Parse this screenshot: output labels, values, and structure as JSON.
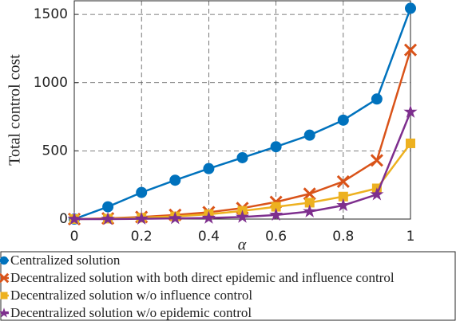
{
  "chart_data": {
    "type": "line",
    "x_label": "α",
    "y_label": "Total control cost",
    "x": [
      0,
      0.1,
      0.2,
      0.3,
      0.4,
      0.5,
      0.6,
      0.7,
      0.8,
      0.9,
      1
    ],
    "xlim": [
      0,
      1
    ],
    "xticks": [
      0,
      0.2,
      0.4,
      0.6,
      0.8,
      1
    ],
    "ylim": [
      0,
      1600
    ],
    "yticks": [
      0,
      500,
      1000,
      1500
    ],
    "grid": true,
    "legend": "bottom",
    "series": [
      {
        "name": "Centralized solution",
        "color": "#0072BD",
        "marker": "circle",
        "values": [
          0,
          90,
          195,
          285,
          370,
          450,
          530,
          615,
          725,
          880,
          1545
        ]
      },
      {
        "name": "Decentralized solution with both direct epidemic and influence control",
        "color": "#D95319",
        "marker": "x",
        "values": [
          0,
          5,
          15,
          30,
          50,
          80,
          125,
          185,
          275,
          430,
          1240
        ]
      },
      {
        "name": "Decentralized solution w/o influence control",
        "color": "#EDB120",
        "marker": "square",
        "values": [
          0,
          3,
          10,
          20,
          35,
          60,
          90,
          120,
          165,
          225,
          555
        ]
      },
      {
        "name": "Decentralized solution w/o epidemic control",
        "color": "#7E2F8E",
        "marker": "star",
        "values": [
          0,
          0,
          2,
          5,
          8,
          15,
          30,
          55,
          100,
          180,
          785
        ]
      }
    ]
  }
}
